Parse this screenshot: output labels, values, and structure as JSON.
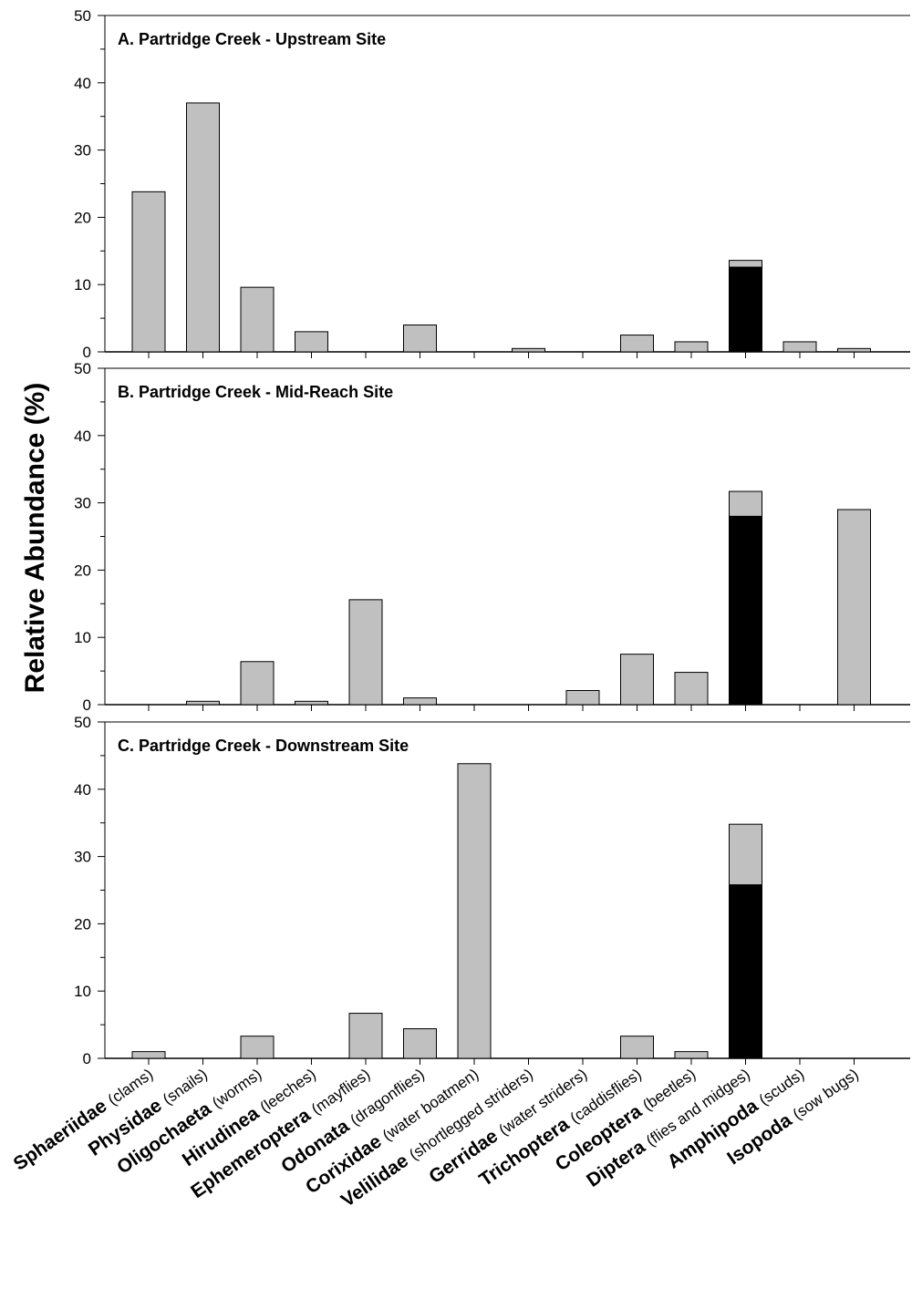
{
  "chart_data": {
    "type": "bar",
    "ylabel": "Relative Abundance (%)",
    "xlabel": "",
    "ylim": [
      0,
      50
    ],
    "yticks": [
      "0",
      "10",
      "20",
      "30",
      "40",
      "50"
    ],
    "grid": false,
    "categories": [
      {
        "name": "Sphaeriidae",
        "common": "(clams)"
      },
      {
        "name": "Physidae",
        "common": "(snails)"
      },
      {
        "name": "Oligochaeta",
        "common": "(worms)"
      },
      {
        "name": "Hirudinea",
        "common": "(leeches)"
      },
      {
        "name": "Ephemeroptera",
        "common": "(mayflies)"
      },
      {
        "name": "Odonata",
        "common": "(dragonflies)"
      },
      {
        "name": "Corixidae",
        "common": "(water boatmen)"
      },
      {
        "name": "Velilidae",
        "common": "(shortlegged striders)"
      },
      {
        "name": "Gerridae",
        "common": "(water striders)"
      },
      {
        "name": "Trichoptera",
        "common": "(caddisflies)"
      },
      {
        "name": "Coleoptera",
        "common": "(beetles)"
      },
      {
        "name": "Diptera",
        "common": "(flies and midges)"
      },
      {
        "name": "Amphipoda",
        "common": "(scuds)"
      },
      {
        "name": "Isopoda",
        "common": "(sow bugs)"
      }
    ],
    "colors": {
      "bar": "#c0c0c0",
      "stacked_segment": "#000000",
      "stroke": "#000000"
    },
    "panels": [
      {
        "title": "A.  Partridge Creek - Upstream Site",
        "values": [
          23.8,
          37.0,
          9.6,
          3.0,
          0,
          4.0,
          0,
          0.5,
          0,
          2.5,
          1.5,
          13.6,
          1.5,
          0.5
        ],
        "black_values": [
          0,
          0,
          0,
          0,
          0,
          0,
          0,
          0,
          0,
          0,
          0,
          12.6,
          0,
          0
        ]
      },
      {
        "title": "B.  Partridge Creek - Mid-Reach Site",
        "values": [
          0,
          0.5,
          6.4,
          0.5,
          15.6,
          1.0,
          0,
          0,
          2.1,
          7.5,
          4.8,
          31.7,
          0,
          29.0
        ],
        "black_values": [
          0,
          0,
          0,
          0,
          0,
          0,
          0,
          0,
          0,
          0,
          0,
          28.0,
          0,
          0
        ]
      },
      {
        "title": "C.  Partridge Creek - Downstream Site",
        "values": [
          1.0,
          0,
          3.3,
          0,
          6.7,
          4.4,
          43.8,
          0,
          0,
          3.3,
          1.0,
          34.8,
          0,
          0
        ],
        "black_values": [
          0,
          0,
          0,
          0,
          0,
          0,
          0,
          0,
          0,
          0,
          0,
          25.8,
          0,
          0
        ]
      }
    ]
  }
}
